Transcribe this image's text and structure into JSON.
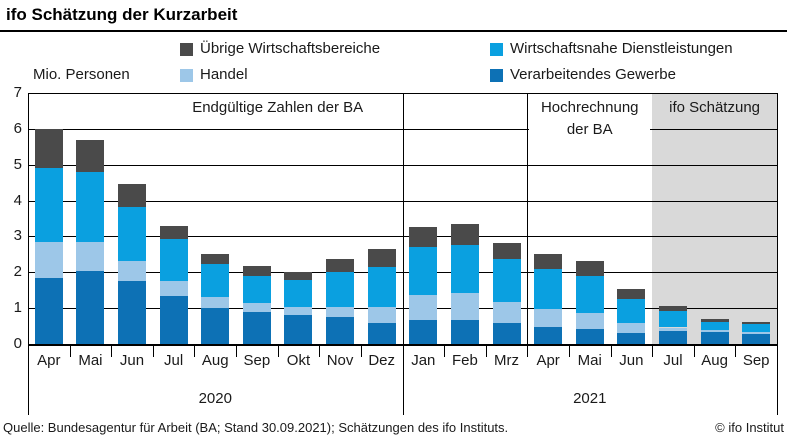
{
  "title": "ifo Schätzung der Kurzarbeit",
  "y_axis_label": "Mio. Personen",
  "legend": [
    {
      "label": "Übrige Wirtschaftsbereiche",
      "color": "#4a4a4a"
    },
    {
      "label": "Wirtschaftsnahe Dienstleistungen",
      "color": "#0aa0e0"
    },
    {
      "label": "Handel",
      "color": "#9dc7e8"
    },
    {
      "label": "Verarbeitendes Gewerbe",
      "color": "#0d71b5"
    }
  ],
  "sections": [
    {
      "label": "Endgültige Zahlen der BA",
      "from": 0,
      "to": 12,
      "shaded": false
    },
    {
      "label": "Hochrechnung der BA",
      "from": 12,
      "to": 15,
      "shaded": false,
      "label_bg": "#ffffff"
    },
    {
      "label": "ifo Schätzung",
      "from": 15,
      "to": 18,
      "shaded": true
    }
  ],
  "footer": {
    "source": "Quelle: Bundesagentur für Arbeit (BA; Stand 30.09.2021); Schätzungen des ifo Instituts.",
    "copyright": "© ifo Institut"
  },
  "chart_data": {
    "type": "bar",
    "stacked": true,
    "title": "ifo Schätzung der Kurzarbeit",
    "ylabel": "Mio. Personen",
    "ylim": [
      0,
      7
    ],
    "yticks": [
      0,
      1,
      2,
      3,
      4,
      5,
      6,
      7
    ],
    "grid": true,
    "legend_position": "top",
    "shaded_region_color": "#d9d9d9",
    "categories": [
      "Apr",
      "Mai",
      "Jun",
      "Jul",
      "Aug",
      "Sep",
      "Okt",
      "Nov",
      "Dez",
      "Jan",
      "Feb",
      "Mrz",
      "Apr",
      "Mai",
      "Jun",
      "Jul",
      "Aug",
      "Sep"
    ],
    "year_groups": [
      {
        "label": "2020",
        "from": 0,
        "to": 9
      },
      {
        "label": "2021",
        "from": 9,
        "to": 18
      }
    ],
    "series": [
      {
        "name": "Verarbeitendes Gewerbe",
        "color": "#0d71b5",
        "values": [
          1.85,
          2.03,
          1.75,
          1.35,
          1.0,
          0.88,
          0.81,
          0.75,
          0.59,
          0.68,
          0.66,
          0.58,
          0.47,
          0.43,
          0.3,
          0.36,
          0.33,
          0.28
        ]
      },
      {
        "name": "Handel",
        "color": "#9dc7e8",
        "values": [
          1.0,
          0.82,
          0.57,
          0.42,
          0.31,
          0.25,
          0.22,
          0.27,
          0.43,
          0.7,
          0.76,
          0.58,
          0.5,
          0.43,
          0.28,
          0.1,
          0.07,
          0.06
        ]
      },
      {
        "name": "Wirtschaftsnahe Dienstleistungen",
        "color": "#0aa0e0",
        "values": [
          2.05,
          1.95,
          1.5,
          1.15,
          0.92,
          0.78,
          0.75,
          1.0,
          1.13,
          1.32,
          1.33,
          1.2,
          1.11,
          1.03,
          0.67,
          0.47,
          0.22,
          0.21
        ]
      },
      {
        "name": "Übrige Wirtschaftsbereiche",
        "color": "#4a4a4a",
        "values": [
          1.1,
          0.9,
          0.64,
          0.38,
          0.29,
          0.26,
          0.22,
          0.36,
          0.5,
          0.57,
          0.61,
          0.45,
          0.42,
          0.43,
          0.28,
          0.13,
          0.08,
          0.07
        ]
      }
    ],
    "totals": [
      6.0,
      5.7,
      4.46,
      3.3,
      2.52,
      2.17,
      2.0,
      2.38,
      2.65,
      3.27,
      3.36,
      2.81,
      2.5,
      2.32,
      1.53,
      1.06,
      0.7,
      0.62
    ]
  }
}
